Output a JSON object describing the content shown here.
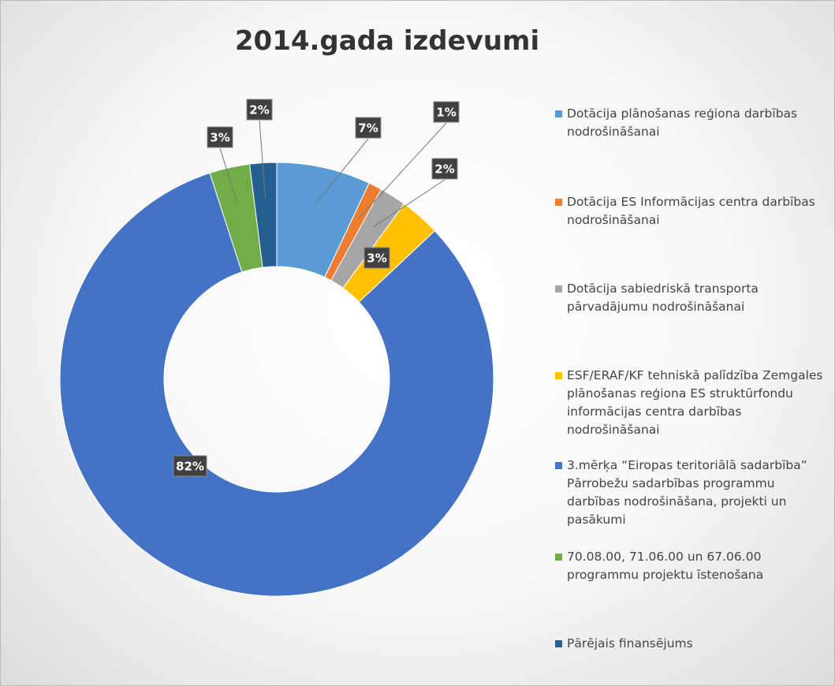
{
  "chart_data": {
    "type": "donut",
    "title": "2014.gada izdevumi",
    "series": [
      {
        "name": "Dotācija plānošanas reģiona darbības nodrošināšanai",
        "color": "#5b9bd5"
      },
      {
        "name": "Dotācija ES Informācijas centra darbības nodrošināšanai",
        "color": "#ed7d31"
      },
      {
        "name": "Dotācija sabiedriskā transporta pārvadājumu nodrošināšanai",
        "color": "#a5a5a5"
      },
      {
        "name": "ESF/ERAF/KF tehniskā palīdzība Zemgales plānošanas reģiona ES struktūrfondu informācijas centra darbības nodrošināšanai",
        "color": "#ffc000"
      },
      {
        "name": "3.mērķa “Eiropas teritoriālā sadarbība” Pārrobežu sadarbības programmu darbības nodrošināšana, projekti un pasākumi",
        "color": "#4472c4"
      },
      {
        "name": "70.08.00, 71.06.00 un 67.06.00 programmu projektu īstenošana",
        "color": "#70ad47"
      },
      {
        "name": "Pārējais finansējums",
        "color": "#255e91"
      }
    ],
    "values": [
      7,
      1,
      2,
      3,
      82,
      3,
      2
    ],
    "value_labels": [
      "7%",
      "1%",
      "2%",
      "3%",
      "82%",
      "3%",
      "2%"
    ],
    "legend": "right"
  }
}
